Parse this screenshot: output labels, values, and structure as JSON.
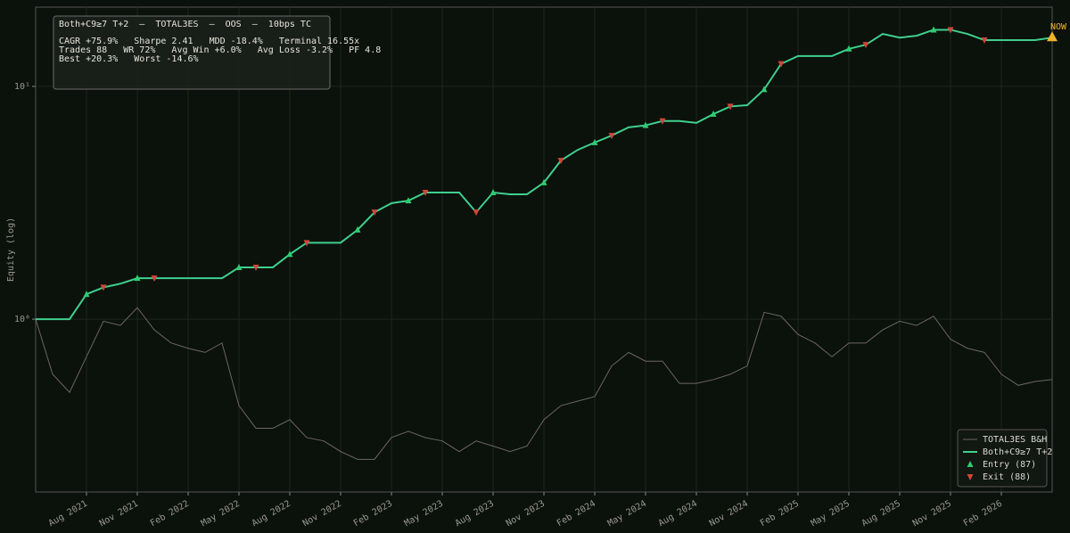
{
  "chart_data": {
    "type": "line",
    "log_y": true,
    "grid": true,
    "legend": "lower right",
    "ylabel": "Equity (log)",
    "info_lines": [
      "Both+C9≥7 T+2  —  TOTAL3ES  —  OOS  —  10bps TC",
      "CAGR +75.9%   Sharpe 2.41   MDD -18.4%   Terminal 16.55x",
      "Trades 88   WR 72%   Avg Win +6.0%   Avg Loss -3.2%   PF 4.8",
      "Best +20.3%   Worst -14.6%"
    ],
    "annotation": "NOW",
    "annotation_color": "#f0b429",
    "xlim": [
      "2021-05",
      "2026-05"
    ],
    "xticks": [
      {
        "value": "2021-08",
        "label": "Aug 2021"
      },
      {
        "value": "2021-11",
        "label": "Nov 2021"
      },
      {
        "value": "2022-02",
        "label": "Feb 2022"
      },
      {
        "value": "2022-05",
        "label": "May 2022"
      },
      {
        "value": "2022-08",
        "label": "Aug 2022"
      },
      {
        "value": "2022-11",
        "label": "Nov 2022"
      },
      {
        "value": "2023-02",
        "label": "Feb 2023"
      },
      {
        "value": "2023-05",
        "label": "May 2023"
      },
      {
        "value": "2023-08",
        "label": "Aug 2023"
      },
      {
        "value": "2023-11",
        "label": "Nov 2023"
      },
      {
        "value": "2024-02",
        "label": "Feb 2024"
      },
      {
        "value": "2024-05",
        "label": "May 2024"
      },
      {
        "value": "2024-08",
        "label": "Aug 2024"
      },
      {
        "value": "2024-11",
        "label": "Nov 2024"
      },
      {
        "value": "2025-02",
        "label": "Feb 2025"
      },
      {
        "value": "2025-05",
        "label": "May 2025"
      },
      {
        "value": "2025-08",
        "label": "Aug 2025"
      },
      {
        "value": "2025-11",
        "label": "Nov 2025"
      },
      {
        "value": "2026-02",
        "label": "Feb 2026"
      }
    ],
    "ylim": [
      0.181,
      21.9
    ],
    "yticks": [
      {
        "value": 1,
        "label": "10⁰"
      },
      {
        "value": 10,
        "label": "10¹"
      }
    ],
    "x": [
      "2021-05",
      "2021-06",
      "2021-07",
      "2021-08",
      "2021-09",
      "2021-10",
      "2021-11",
      "2021-12",
      "2022-01",
      "2022-02",
      "2022-03",
      "2022-04",
      "2022-05",
      "2022-06",
      "2022-07",
      "2022-08",
      "2022-09",
      "2022-10",
      "2022-11",
      "2022-12",
      "2023-01",
      "2023-02",
      "2023-03",
      "2023-04",
      "2023-05",
      "2023-06",
      "2023-07",
      "2023-08",
      "2023-09",
      "2023-10",
      "2023-11",
      "2023-12",
      "2024-01",
      "2024-02",
      "2024-03",
      "2024-04",
      "2024-05",
      "2024-06",
      "2024-07",
      "2024-08",
      "2024-09",
      "2024-10",
      "2024-11",
      "2024-12",
      "2025-01",
      "2025-02",
      "2025-03",
      "2025-04",
      "2025-05",
      "2025-06",
      "2025-07",
      "2025-08",
      "2025-09",
      "2025-10",
      "2025-11",
      "2025-12",
      "2026-01",
      "2026-02",
      "2026-03",
      "2026-04",
      "2026-05"
    ],
    "series": [
      {
        "name": "TOTAL3ES B&H",
        "color": "#6e6660",
        "values": [
          1.0,
          0.58,
          0.485,
          0.69,
          0.98,
          0.94,
          1.12,
          0.9,
          0.79,
          0.75,
          0.72,
          0.79,
          0.425,
          0.34,
          0.34,
          0.37,
          0.31,
          0.3,
          0.27,
          0.25,
          0.25,
          0.31,
          0.33,
          0.31,
          0.3,
          0.27,
          0.3,
          0.285,
          0.27,
          0.285,
          0.37,
          0.425,
          0.445,
          0.465,
          0.63,
          0.72,
          0.66,
          0.66,
          0.53,
          0.53,
          0.55,
          0.58,
          0.63,
          1.07,
          1.03,
          0.86,
          0.79,
          0.69,
          0.79,
          0.79,
          0.9,
          0.98,
          0.94,
          1.03,
          0.82,
          0.75,
          0.72,
          0.58,
          0.52,
          0.54,
          0.55
        ]
      },
      {
        "name": "Both+C9≥7 T+2",
        "color": "#3fcf8e",
        "values": [
          1.0,
          1.0,
          1.0,
          1.28,
          1.37,
          1.42,
          1.5,
          1.5,
          1.5,
          1.5,
          1.5,
          1.5,
          1.67,
          1.67,
          1.67,
          1.9,
          2.13,
          2.13,
          2.13,
          2.42,
          2.88,
          3.15,
          3.23,
          3.5,
          3.5,
          3.5,
          2.88,
          3.5,
          3.44,
          3.44,
          3.86,
          4.8,
          5.34,
          5.74,
          6.15,
          6.67,
          6.8,
          7.1,
          7.1,
          6.97,
          7.6,
          8.2,
          8.3,
          9.7,
          12.5,
          13.5,
          13.5,
          13.5,
          14.5,
          15.1,
          16.8,
          16.2,
          16.5,
          17.5,
          17.5,
          16.8,
          15.8,
          15.8,
          15.8,
          15.8,
          16.2
        ]
      }
    ],
    "markers": [
      {
        "name": "Entry (87)",
        "color": "#2ecc71",
        "shape": "up",
        "x": [
          "2021-08",
          "2021-11",
          "2022-05",
          "2022-08",
          "2022-12",
          "2023-03",
          "2023-08",
          "2023-11",
          "2024-02",
          "2024-05",
          "2024-09",
          "2024-12",
          "2025-05",
          "2025-10",
          "2026-05"
        ],
        "values": [
          1.28,
          1.5,
          1.67,
          1.9,
          2.42,
          3.23,
          3.5,
          3.86,
          5.74,
          6.8,
          7.6,
          9.7,
          14.5,
          17.5,
          16.2
        ]
      },
      {
        "name": "Exit (88)",
        "color": "#d0463a",
        "shape": "down",
        "x": [
          "2021-09",
          "2021-12",
          "2022-06",
          "2022-09",
          "2023-01",
          "2023-04",
          "2023-07",
          "2023-12",
          "2024-03",
          "2024-06",
          "2024-10",
          "2025-01",
          "2025-06",
          "2025-11",
          "2026-01"
        ],
        "values": [
          1.37,
          1.5,
          1.67,
          2.13,
          2.88,
          3.5,
          2.88,
          4.8,
          6.15,
          7.1,
          8.2,
          12.5,
          15.1,
          17.5,
          15.8
        ]
      }
    ]
  }
}
